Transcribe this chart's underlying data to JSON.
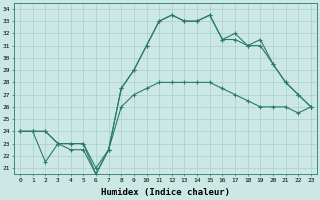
{
  "line1": {
    "x": [
      0,
      1,
      2,
      3,
      4,
      5,
      6,
      7,
      8,
      9,
      10,
      11,
      12,
      13,
      14,
      15,
      16,
      17,
      18,
      19,
      20,
      21,
      22,
      23
    ],
    "y": [
      24,
      24,
      24,
      23,
      23,
      23,
      20.5,
      22.5,
      26,
      27,
      27.5,
      28,
      28,
      28,
      28,
      28,
      27.5,
      27,
      26.5,
      26,
      26,
      26,
      25.5,
      26
    ]
  },
  "line2": {
    "x": [
      0,
      1,
      2,
      3,
      4,
      5,
      6,
      7,
      8,
      9,
      10,
      11,
      12,
      13,
      14,
      15,
      16,
      17,
      18,
      19,
      20,
      21,
      22,
      23
    ],
    "y": [
      24,
      24,
      24,
      23,
      23,
      23,
      21,
      22.5,
      27.5,
      29,
      31,
      33,
      33.5,
      33,
      33,
      33.5,
      31.5,
      31.5,
      31,
      31,
      29.5,
      28,
      27,
      26
    ]
  },
  "line3": {
    "x": [
      0,
      1,
      2,
      3,
      4,
      5,
      6,
      7,
      8,
      9,
      10,
      11,
      12,
      13,
      14,
      15,
      16,
      17,
      18,
      19,
      20,
      21,
      22,
      23
    ],
    "y": [
      24,
      24,
      21.5,
      23,
      22.5,
      22.5,
      20.5,
      22.5,
      27.5,
      29,
      31,
      33,
      33.5,
      33,
      33,
      33.5,
      31.5,
      32,
      31,
      31.5,
      29.5,
      28,
      27,
      26
    ]
  },
  "color": "#2a7a6e",
  "bg_color": "#cce8e5",
  "grid_color": "#aacfcc",
  "xlabel": "Humidex (Indice chaleur)",
  "xlim": [
    -0.5,
    23.5
  ],
  "ylim": [
    20.5,
    34.5
  ],
  "xticks": [
    0,
    1,
    2,
    3,
    4,
    5,
    6,
    7,
    8,
    9,
    10,
    11,
    12,
    13,
    14,
    15,
    16,
    17,
    18,
    19,
    20,
    21,
    22,
    23
  ],
  "yticks": [
    21,
    22,
    23,
    24,
    25,
    26,
    27,
    28,
    29,
    30,
    31,
    32,
    33,
    34
  ],
  "marker": "+"
}
